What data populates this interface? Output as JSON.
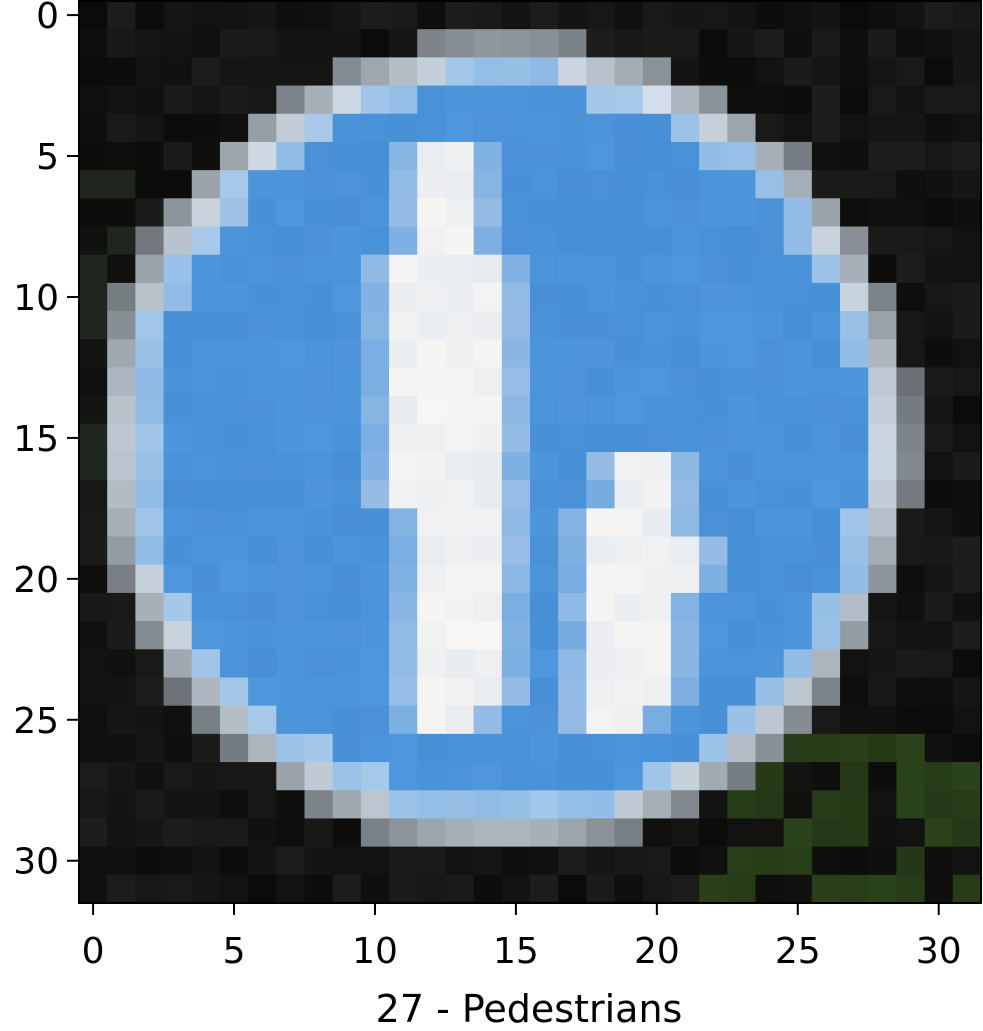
{
  "figure": {
    "xlabel": "27 - Pedestrians",
    "x_ticks": [
      "0",
      "5",
      "10",
      "15",
      "20",
      "25",
      "30"
    ],
    "y_ticks": [
      "0",
      "5",
      "10",
      "15",
      "20",
      "25",
      "30"
    ]
  },
  "image": {
    "grid_size": [
      32,
      32
    ],
    "extent": [
      -0.5,
      31.5
    ],
    "subject": "blue circular traffic sign showing white pedestrian figures (adult and child)",
    "colors": {
      "sign_blue": "#4f97dc",
      "sign_blue_dark": "#3f86cf",
      "border_white": "#d8e4f0",
      "figure_white": "#f8f6f4",
      "background_dark": "#0b0c0a",
      "foliage_green": "#2f4a1c"
    }
  }
}
